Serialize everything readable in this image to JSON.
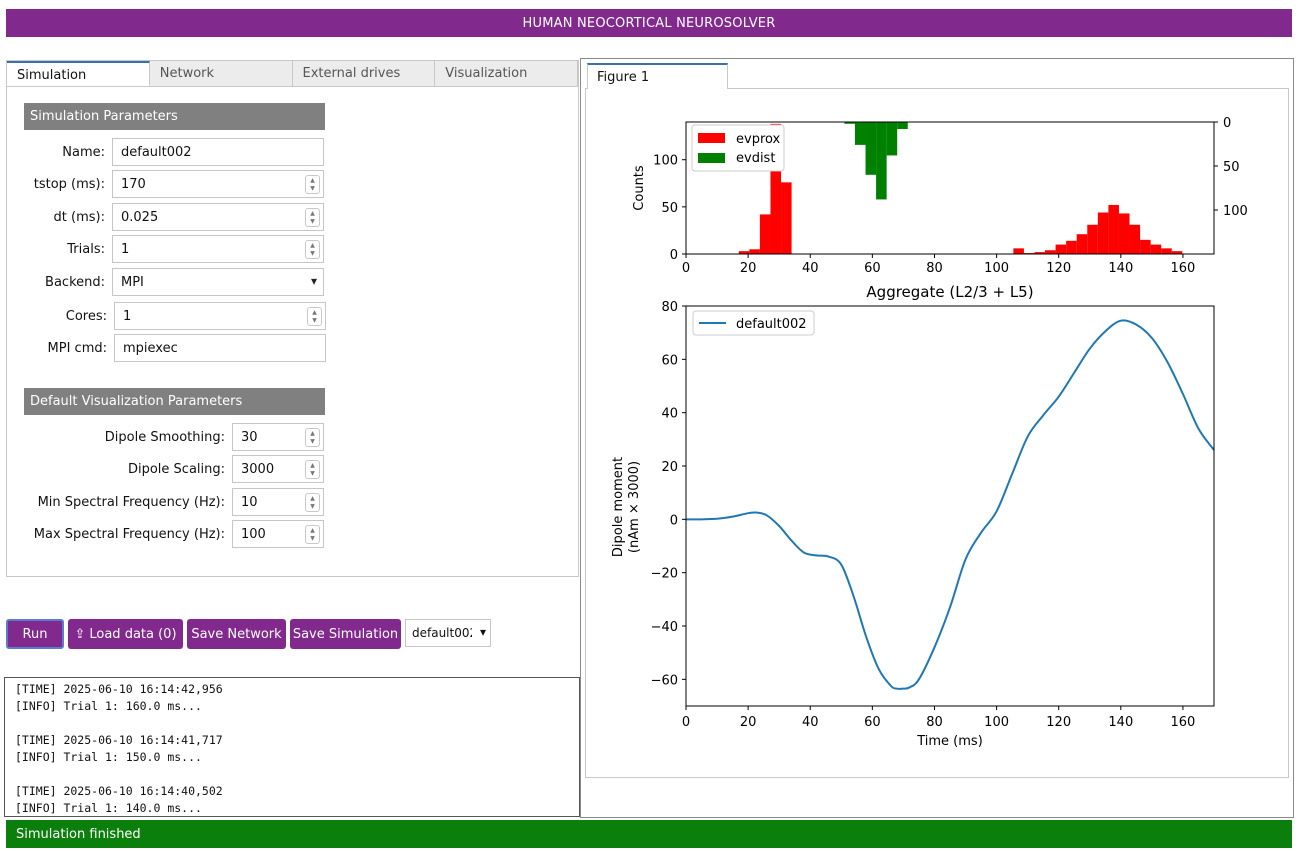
{
  "app_title": "HUMAN NEOCORTICAL NEUROSOLVER",
  "tabs": [
    "Simulation",
    "Network",
    "External drives",
    "Visualization"
  ],
  "sim_params": {
    "header": "Simulation Parameters",
    "name_label": "Name:",
    "name_value": "default002",
    "tstop_label": "tstop (ms):",
    "tstop_value": "170",
    "dt_label": "dt (ms):",
    "dt_value": "0.025",
    "trials_label": "Trials:",
    "trials_value": "1",
    "backend_label": "Backend:",
    "backend_value": "MPI",
    "cores_label": "Cores:",
    "cores_value": "1",
    "mpi_label": "MPI cmd:",
    "mpi_value": "mpiexec"
  },
  "viz_params": {
    "header": "Default Visualization Parameters",
    "smooth_label": "Dipole Smoothing:",
    "smooth_value": "30",
    "scaling_label": "Dipole Scaling:",
    "scaling_value": "3000",
    "minfreq_label": "Min Spectral Frequency (Hz):",
    "minfreq_value": "10",
    "maxfreq_label": "Max Spectral Frequency (Hz):",
    "maxfreq_value": "100"
  },
  "buttons": {
    "run": "Run",
    "load": "Load data (0)",
    "save_network": "Save Network",
    "save_sim": "Save Simulation",
    "sim_select": "default002"
  },
  "log_lines": [
    "[TIME] 2025-06-10 16:14:42,956",
    "[INFO] Trial 1: 160.0 ms...",
    "",
    "[TIME] 2025-06-10 16:14:41,717",
    "[INFO] Trial 1: 150.0 ms...",
    "",
    "[TIME] 2025-06-10 16:14:40,502",
    "[INFO] Trial 1: 140.0 ms..."
  ],
  "status": "Simulation finished",
  "figure_tab": "Figure 1",
  "colors": {
    "accent": "#82298e",
    "status_ok": "#0b7f0b",
    "evprox": "#ff0000",
    "evdist": "#008000",
    "dipole": "#1f77b4"
  },
  "chart_data": [
    {
      "type": "bar",
      "xlabel": "",
      "ylabel": "Counts",
      "xlim": [
        0,
        170
      ],
      "ylim_left": [
        0,
        140
      ],
      "ylim_right_inverted": [
        0,
        150
      ],
      "xticks": [
        0,
        20,
        40,
        60,
        80,
        100,
        120,
        140,
        160
      ],
      "yticks_left": [
        0,
        50,
        100
      ],
      "yticks_right": [
        0,
        50,
        100
      ],
      "legend": [
        "evprox",
        "evdist"
      ],
      "bin_width": 3.4,
      "series": [
        {
          "name": "evprox",
          "axis": "left",
          "x": [
            17,
            20.4,
            23.8,
            27.2,
            30.6,
            105.4,
            108.8,
            112.2,
            115.6,
            119,
            122.4,
            125.8,
            129.2,
            132.6,
            136,
            139.4,
            142.8,
            146.2,
            149.6,
            153,
            156.4
          ],
          "values": [
            3,
            5,
            42,
            138,
            76,
            6,
            1,
            2,
            4,
            10,
            14,
            21,
            31,
            44,
            52,
            43,
            31,
            15,
            10,
            6,
            3
          ]
        },
        {
          "name": "evdist",
          "axis": "right",
          "x": [
            51,
            54.4,
            57.8,
            61.2,
            64.6,
            68
          ],
          "values": [
            2,
            26,
            60,
            88,
            38,
            8
          ]
        }
      ]
    },
    {
      "type": "line",
      "title": "Aggregate (L2/3 + L5)",
      "xlabel": "Time (ms)",
      "ylabel": "Dipole moment\n(nAm × 3000)",
      "xlim": [
        0,
        170
      ],
      "ylim": [
        -70,
        80
      ],
      "xticks": [
        0,
        20,
        40,
        60,
        80,
        100,
        120,
        140,
        160
      ],
      "yticks": [
        -60,
        -40,
        -20,
        0,
        20,
        40,
        60,
        80
      ],
      "series": [
        {
          "name": "default002",
          "x": [
            0,
            5,
            10,
            15,
            20,
            23,
            26,
            30,
            34,
            38,
            42,
            46,
            50,
            54,
            58,
            62,
            66,
            68,
            70,
            72,
            75,
            80,
            85,
            90,
            95,
            100,
            105,
            110,
            115,
            120,
            125,
            130,
            135,
            140,
            145,
            150,
            155,
            160,
            165,
            170
          ],
          "values": [
            0,
            0,
            0.2,
            1,
            2.3,
            2.5,
            1.5,
            -2.5,
            -8,
            -12.5,
            -13.5,
            -14,
            -17,
            -29,
            -44,
            -56,
            -62.5,
            -63.5,
            -63.5,
            -63,
            -60,
            -48,
            -33,
            -15,
            -5,
            3,
            17,
            31,
            39,
            46,
            55,
            64,
            70.5,
            74.5,
            73,
            68,
            59,
            47,
            34,
            26
          ]
        }
      ]
    }
  ]
}
